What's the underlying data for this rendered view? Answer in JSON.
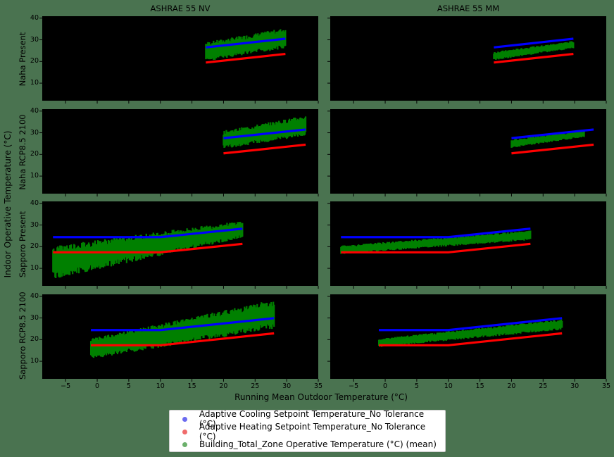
{
  "chart_data": {
    "type": "scatter",
    "title": "",
    "xlabel": "Running Mean Outdoor Temperature (°C)",
    "ylabel": "Indoor Operative Temperature (°C)",
    "xlim": [
      -8.7,
      35
    ],
    "ylim": [
      1.9,
      40.9
    ],
    "x_ticks": [
      -5,
      0,
      5,
      10,
      15,
      20,
      25,
      30,
      35
    ],
    "y_ticks": [
      10,
      20,
      30,
      40
    ],
    "columns": [
      "ASHRAE 55 NV",
      "ASHRAE 55 MM"
    ],
    "rows": [
      "Naha Present",
      "Naha RCP8.5 2100",
      "Sapporo Present",
      "Sapporo RCP8.5 2100"
    ],
    "legend": [
      {
        "label": "Adaptive Cooling Setpoint Temperature_No Tolerance (°C)",
        "color": "#0000ff"
      },
      {
        "label": "Adaptive Heating Setpoint Temperature_No Tolerance (°C)",
        "color": "#ff0000"
      },
      {
        "label": "Building_Total_Zone Operative Temperature (°C) (mean)",
        "color": "#008000"
      }
    ],
    "legend_position": "bottom center",
    "grid": false,
    "panels": [
      {
        "row": "Naha Present",
        "col": "ASHRAE 55 NV",
        "cooling": [
          [
            17.2,
            26.5
          ],
          [
            29.8,
            30.5
          ]
        ],
        "heating": [
          [
            17.2,
            19.5
          ],
          [
            29.8,
            23.5
          ]
        ],
        "operative_band": {
          "x": [
            17.2,
            29.8
          ],
          "lower": [
            20.0,
            26.0
          ],
          "upper": [
            29.0,
            35.5
          ]
        }
      },
      {
        "row": "Naha Present",
        "col": "ASHRAE 55 MM",
        "cooling": [
          [
            17.2,
            26.5
          ],
          [
            29.8,
            30.5
          ]
        ],
        "heating": [
          [
            17.2,
            19.5
          ],
          [
            29.8,
            23.5
          ]
        ],
        "operative_band": {
          "x": [
            17.2,
            29.8
          ],
          "lower": [
            20.5,
            26.0
          ],
          "upper": [
            24.5,
            29.5
          ]
        }
      },
      {
        "row": "Naha RCP8.5 2100",
        "col": "ASHRAE 55 NV",
        "cooling": [
          [
            20.0,
            27.5
          ],
          [
            33.0,
            31.5
          ]
        ],
        "heating": [
          [
            20.0,
            20.5
          ],
          [
            33.0,
            24.5
          ]
        ],
        "operative_band": {
          "x": [
            20.0,
            33.0
          ],
          "lower": [
            22.5,
            28.5
          ],
          "upper": [
            31.0,
            38.0
          ]
        }
      },
      {
        "row": "Naha RCP8.5 2100",
        "col": "ASHRAE 55 MM",
        "cooling": [
          [
            20.0,
            27.5
          ],
          [
            33.0,
            31.5
          ]
        ],
        "heating": [
          [
            20.0,
            20.5
          ],
          [
            33.0,
            24.5
          ]
        ],
        "operative_band": {
          "x": [
            20.0,
            31.5
          ],
          "lower": [
            23.0,
            28.0
          ],
          "upper": [
            27.0,
            31.0
          ]
        }
      },
      {
        "row": "Sapporo Present",
        "col": "ASHRAE 55 NV",
        "cooling": [
          [
            -7.0,
            24.4
          ],
          [
            10.0,
            24.4
          ],
          [
            23.0,
            28.3
          ]
        ],
        "heating": [
          [
            -7.0,
            17.4
          ],
          [
            10.0,
            17.4
          ],
          [
            23.0,
            21.3
          ]
        ],
        "operative_band": {
          "x": [
            -7.0,
            23.0
          ],
          "lower": [
            5.0,
            24.0
          ],
          "upper": [
            20.5,
            32.0
          ]
        }
      },
      {
        "row": "Sapporo Present",
        "col": "ASHRAE 55 MM",
        "cooling": [
          [
            -7.0,
            24.4
          ],
          [
            10.0,
            24.4
          ],
          [
            23.0,
            28.3
          ]
        ],
        "heating": [
          [
            -7.0,
            17.4
          ],
          [
            10.0,
            17.4
          ],
          [
            23.0,
            21.3
          ]
        ],
        "operative_band": {
          "x": [
            -7.0,
            23.0
          ],
          "lower": [
            16.5,
            23.0
          ],
          "upper": [
            20.5,
            27.5
          ]
        }
      },
      {
        "row": "Sapporo RCP8.5 2100",
        "col": "ASHRAE 55 NV",
        "cooling": [
          [
            -1.0,
            24.4
          ],
          [
            10.0,
            24.4
          ],
          [
            28.0,
            29.9
          ]
        ],
        "heating": [
          [
            -1.0,
            17.4
          ],
          [
            10.0,
            17.4
          ],
          [
            28.0,
            22.9
          ]
        ],
        "operative_band": {
          "x": [
            -1.0,
            28.0
          ],
          "lower": [
            11.0,
            25.0
          ],
          "upper": [
            20.5,
            38.5
          ]
        }
      },
      {
        "row": "Sapporo RCP8.5 2100",
        "col": "ASHRAE 55 MM",
        "cooling": [
          [
            -1.0,
            24.4
          ],
          [
            10.0,
            24.4
          ],
          [
            28.0,
            29.9
          ]
        ],
        "heating": [
          [
            -1.0,
            17.4
          ],
          [
            10.0,
            17.4
          ],
          [
            28.0,
            22.9
          ]
        ],
        "operative_band": {
          "x": [
            -1.0,
            28.0
          ],
          "lower": [
            16.5,
            24.5
          ],
          "upper": [
            20.5,
            29.5
          ]
        }
      }
    ]
  }
}
